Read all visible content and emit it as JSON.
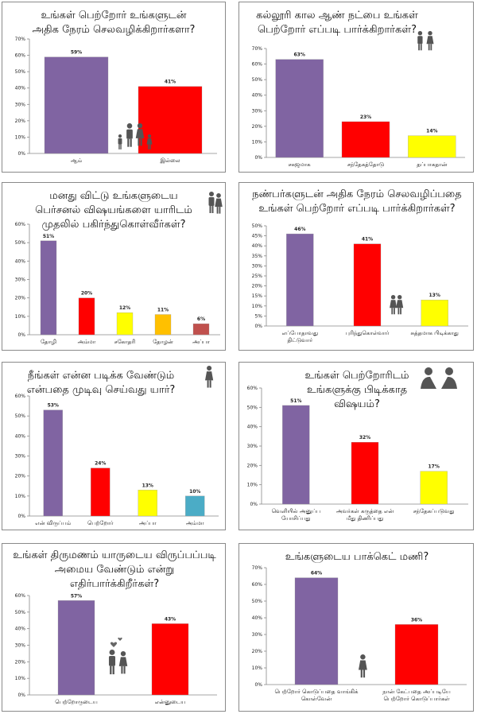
{
  "chart_data": [
    {
      "type": "bar",
      "title": "உங்கள் பெற்றோர் உங்களுடன் அதிக நேரம் செலவழிக்கிறார்களா?",
      "categories": [
        "ஆம்",
        "இல்லை"
      ],
      "values": [
        59,
        41
      ],
      "value_labels": [
        "59%",
        "41%"
      ],
      "colors": [
        "#8064a2",
        "#ff0000"
      ],
      "yticks": [
        "0%",
        "10%",
        "20%",
        "30%",
        "40%",
        "50%",
        "60%",
        "70%"
      ],
      "ylim": [
        0,
        70
      ],
      "icon": "family-icon"
    },
    {
      "type": "bar",
      "title": "கல்லூரி கால ஆண் நட்பை உங்கள் பெற்றோர் எப்படி பார்க்கிறார்கள்?",
      "categories": [
        "சகஜமாக",
        "சந்தேகத்தோடு",
        "தப்பாகதான்"
      ],
      "values": [
        63,
        23,
        14
      ],
      "value_labels": [
        "63%",
        "23%",
        "14%"
      ],
      "colors": [
        "#8064a2",
        "#ff0000",
        "#ffff00"
      ],
      "yticks": [
        "0%",
        "10%",
        "20%",
        "30%",
        "40%",
        "50%",
        "60%",
        "70%"
      ],
      "ylim": [
        0,
        70
      ],
      "icon": "couple-icon"
    },
    {
      "type": "bar",
      "title": "மனது விட்டு உங்களுடைய பெர்சனல் விஷயங்களை யாரிடம் முதலில் பகிர்ந்துகொள்வீர்கள்?",
      "categories": [
        "தோழி",
        "அம்மா",
        "சகோதரி",
        "தோழன்",
        "அப்பா"
      ],
      "values": [
        51,
        20,
        12,
        11,
        6
      ],
      "value_labels": [
        "51%",
        "20%",
        "12%",
        "11%",
        "6%"
      ],
      "colors": [
        "#8064a2",
        "#ff0000",
        "#ffff00",
        "#ffc000",
        "#c0504d"
      ],
      "yticks": [
        "0%",
        "10%",
        "20%",
        "30%",
        "40%",
        "50%",
        "60%"
      ],
      "ylim": [
        0,
        60
      ],
      "icon": "hug-icon"
    },
    {
      "type": "bar",
      "title": "நண்பர்களுடன் அதிக நேரம் செலவழிப்பதை உங்கள் பெற்றோர் எப்படி பார்க்கிறார்கள்?",
      "categories": [
        "எப்போதாவது|திட்டுவார்",
        "புரிந்துகொள்வார்",
        "சுத்தமாக பிடிக்காது"
      ],
      "values": [
        46,
        41,
        13
      ],
      "value_labels": [
        "46%",
        "41%",
        "13%"
      ],
      "colors": [
        "#8064a2",
        "#ff0000",
        "#ffff00"
      ],
      "yticks": [
        "0%",
        "5%",
        "10%",
        "15%",
        "20%",
        "25%",
        "30%",
        "35%",
        "40%",
        "45%",
        "50%"
      ],
      "ylim": [
        0,
        50
      ],
      "icon": "friends-icon"
    },
    {
      "type": "bar",
      "title": "நீங்கள் என்ன படிக்க வேண்டும் என்பதை முடிவு செய்வது யார்?",
      "categories": [
        "என் விருப்பம்",
        "பெற்றோர்",
        "அப்பா",
        "அம்மா"
      ],
      "values": [
        53,
        24,
        13,
        10
      ],
      "value_labels": [
        "53%",
        "24%",
        "13%",
        "10%"
      ],
      "colors": [
        "#8064a2",
        "#ff0000",
        "#ffff00",
        "#4bacc6"
      ],
      "yticks": [
        "0%",
        "10%",
        "20%",
        "30%",
        "40%",
        "50%",
        "60%"
      ],
      "ylim": [
        0,
        60
      ],
      "icon": "girl-icon"
    },
    {
      "type": "bar",
      "title": "உங்கள் பெற்றோரிடம் உங்களுக்கு பிடிக்காத விஷயம்?",
      "categories": [
        "வெளியில் அனுப்ப|யோசிப்பது",
        "அவர்கள் கருத்தை என்|மீது திணிப்பது",
        "சந்தேகப்படுவது"
      ],
      "values": [
        51,
        32,
        17
      ],
      "value_labels": [
        "51%",
        "32%",
        "17%"
      ],
      "colors": [
        "#8064a2",
        "#ff0000",
        "#ffff00"
      ],
      "yticks": [
        "0%",
        "10%",
        "20%",
        "30%",
        "40%",
        "50%",
        "60%"
      ],
      "ylim": [
        0,
        60
      ],
      "icon": "talk-icon"
    },
    {
      "type": "bar",
      "title": "உங்கள் திருமணம் யாருடைய விருப்பப்படி அமைய வேண்டும் என்று எதிர்பார்க்கிறீர்கள்?",
      "categories": [
        "பெற்றோருடைய",
        "என்னுடைய"
      ],
      "values": [
        57,
        43
      ],
      "value_labels": [
        "57%",
        "43%"
      ],
      "colors": [
        "#8064a2",
        "#ff0000"
      ],
      "yticks": [
        "0%",
        "10%",
        "20%",
        "30%",
        "40%",
        "50%",
        "60%"
      ],
      "ylim": [
        0,
        60
      ],
      "icon": "love-couple-icon"
    },
    {
      "type": "bar",
      "title": "உங்களுடைய பாக்கெட் மணி?",
      "categories": [
        "பெற்றோர் கொடுப்பதை வாங்கிக்|கொள்வேன்",
        "நான் கேட்பதை அப்படியே|பெற்றோர் கொடுப்பார்கள்"
      ],
      "values": [
        64,
        36
      ],
      "value_labels": [
        "64%",
        "36%"
      ],
      "colors": [
        "#8064a2",
        "#ff0000"
      ],
      "yticks": [
        "0%",
        "10%",
        "20%",
        "30%",
        "40%",
        "50%",
        "60%",
        "70%"
      ],
      "ylim": [
        0,
        70
      ],
      "icon": "girl-icon"
    }
  ]
}
